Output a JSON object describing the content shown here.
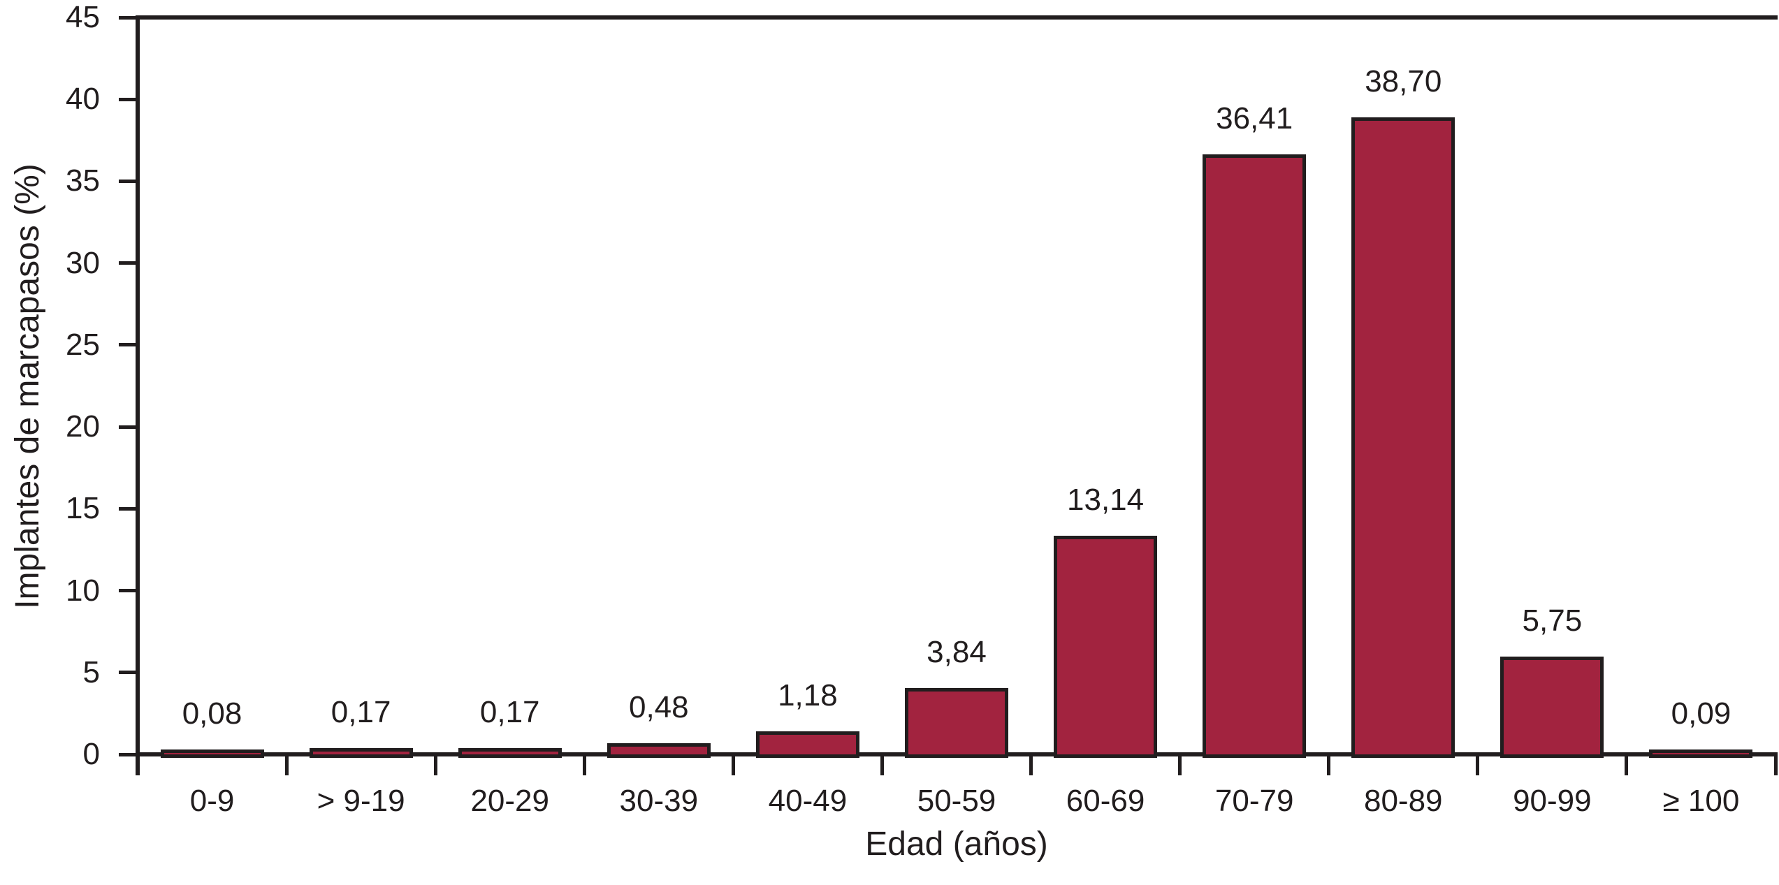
{
  "chart_data": {
    "type": "bar",
    "title": "",
    "categories": [
      "0-9",
      "> 9-19",
      "20-29",
      "30-39",
      "40-49",
      "50-59",
      "60-69",
      "70-79",
      "80-89",
      "90-99",
      "≥ 100"
    ],
    "values": [
      0.08,
      0.17,
      0.17,
      0.48,
      1.18,
      3.84,
      13.14,
      36.41,
      38.7,
      5.75,
      0.09
    ],
    "value_labels": [
      "0,08",
      "0,17",
      "0,17",
      "0,48",
      "1,18",
      "3,84",
      "13,14",
      "36,41",
      "38,70",
      "5,75",
      "0,09"
    ],
    "xlabel": "Edad (años)",
    "ylabel": "Implantes de marcapasos (%)",
    "ylim": [
      0,
      45
    ],
    "yticks": [
      0,
      5,
      10,
      15,
      20,
      25,
      30,
      35,
      40,
      45
    ],
    "grid": false,
    "legend_position": "none",
    "bar_color": "#A2233F",
    "bar_border_color": "#211D1E",
    "axis_color": "#211D1E",
    "text_color": "#211D1E",
    "background_color": "#FFFFFF"
  }
}
